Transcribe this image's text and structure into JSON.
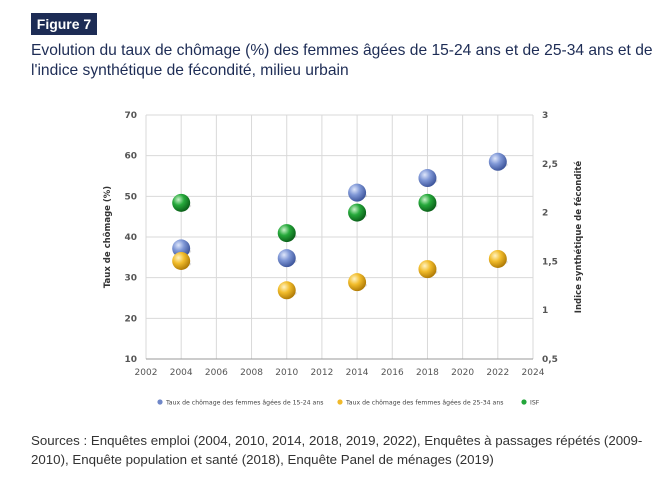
{
  "figure_label": "Figure 7",
  "title": "Evolution du taux de chômage (%) des femmes âgées de 15-24 ans et de 25-34 ans et de l'indice synthétique de fécondité, milieu urbain",
  "sources": "Sources : Enquêtes emploi (2004, 2010, 2014, 2018, 2019, 2022), Enquêtes à passages répétés (2009-2010), Enquête population et santé (2018), Enquête Panel de ménages (2019)",
  "chart_data": {
    "type": "scatter",
    "title": "",
    "xlabel": "",
    "ylabel": "Taux de chômage (%)",
    "y2label": "Indice synthétique de fécondité",
    "xlim": [
      2002,
      2024
    ],
    "ylim": [
      10,
      70
    ],
    "y2lim": [
      0.5,
      3
    ],
    "x_ticks": [
      "2002",
      "2004",
      "2006",
      "2008",
      "2010",
      "2012",
      "2014",
      "2016",
      "2018",
      "2020",
      "2022",
      "2024"
    ],
    "y_ticks": [
      "10",
      "20",
      "30",
      "40",
      "50",
      "60",
      "70"
    ],
    "y2_ticks": [
      "0,5",
      "1",
      "1,5",
      "2",
      "2,5",
      "3"
    ],
    "grid": true,
    "legend_position": "bottom",
    "series": [
      {
        "name": "Taux de chômage des femmes âgées de 15-24 ans",
        "axis": "left",
        "color": "#6f87c8",
        "x": [
          2004,
          2010,
          2014,
          2018,
          2022
        ],
        "y": [
          37.2,
          34.8,
          50.9,
          54.5,
          58.5
        ]
      },
      {
        "name": "Taux de chômage des femmes âgées de 25-34 ans",
        "axis": "left",
        "color": "#f0b92a",
        "x": [
          2004,
          2010,
          2014,
          2018,
          2022
        ],
        "y": [
          34.1,
          26.9,
          28.9,
          32.1,
          34.6
        ]
      },
      {
        "name": "ISF",
        "axis": "right",
        "color": "#23a63a",
        "x": [
          2004,
          2010,
          2014,
          2018
        ],
        "y": [
          2.1,
          1.79,
          2.0,
          2.1
        ]
      }
    ]
  }
}
